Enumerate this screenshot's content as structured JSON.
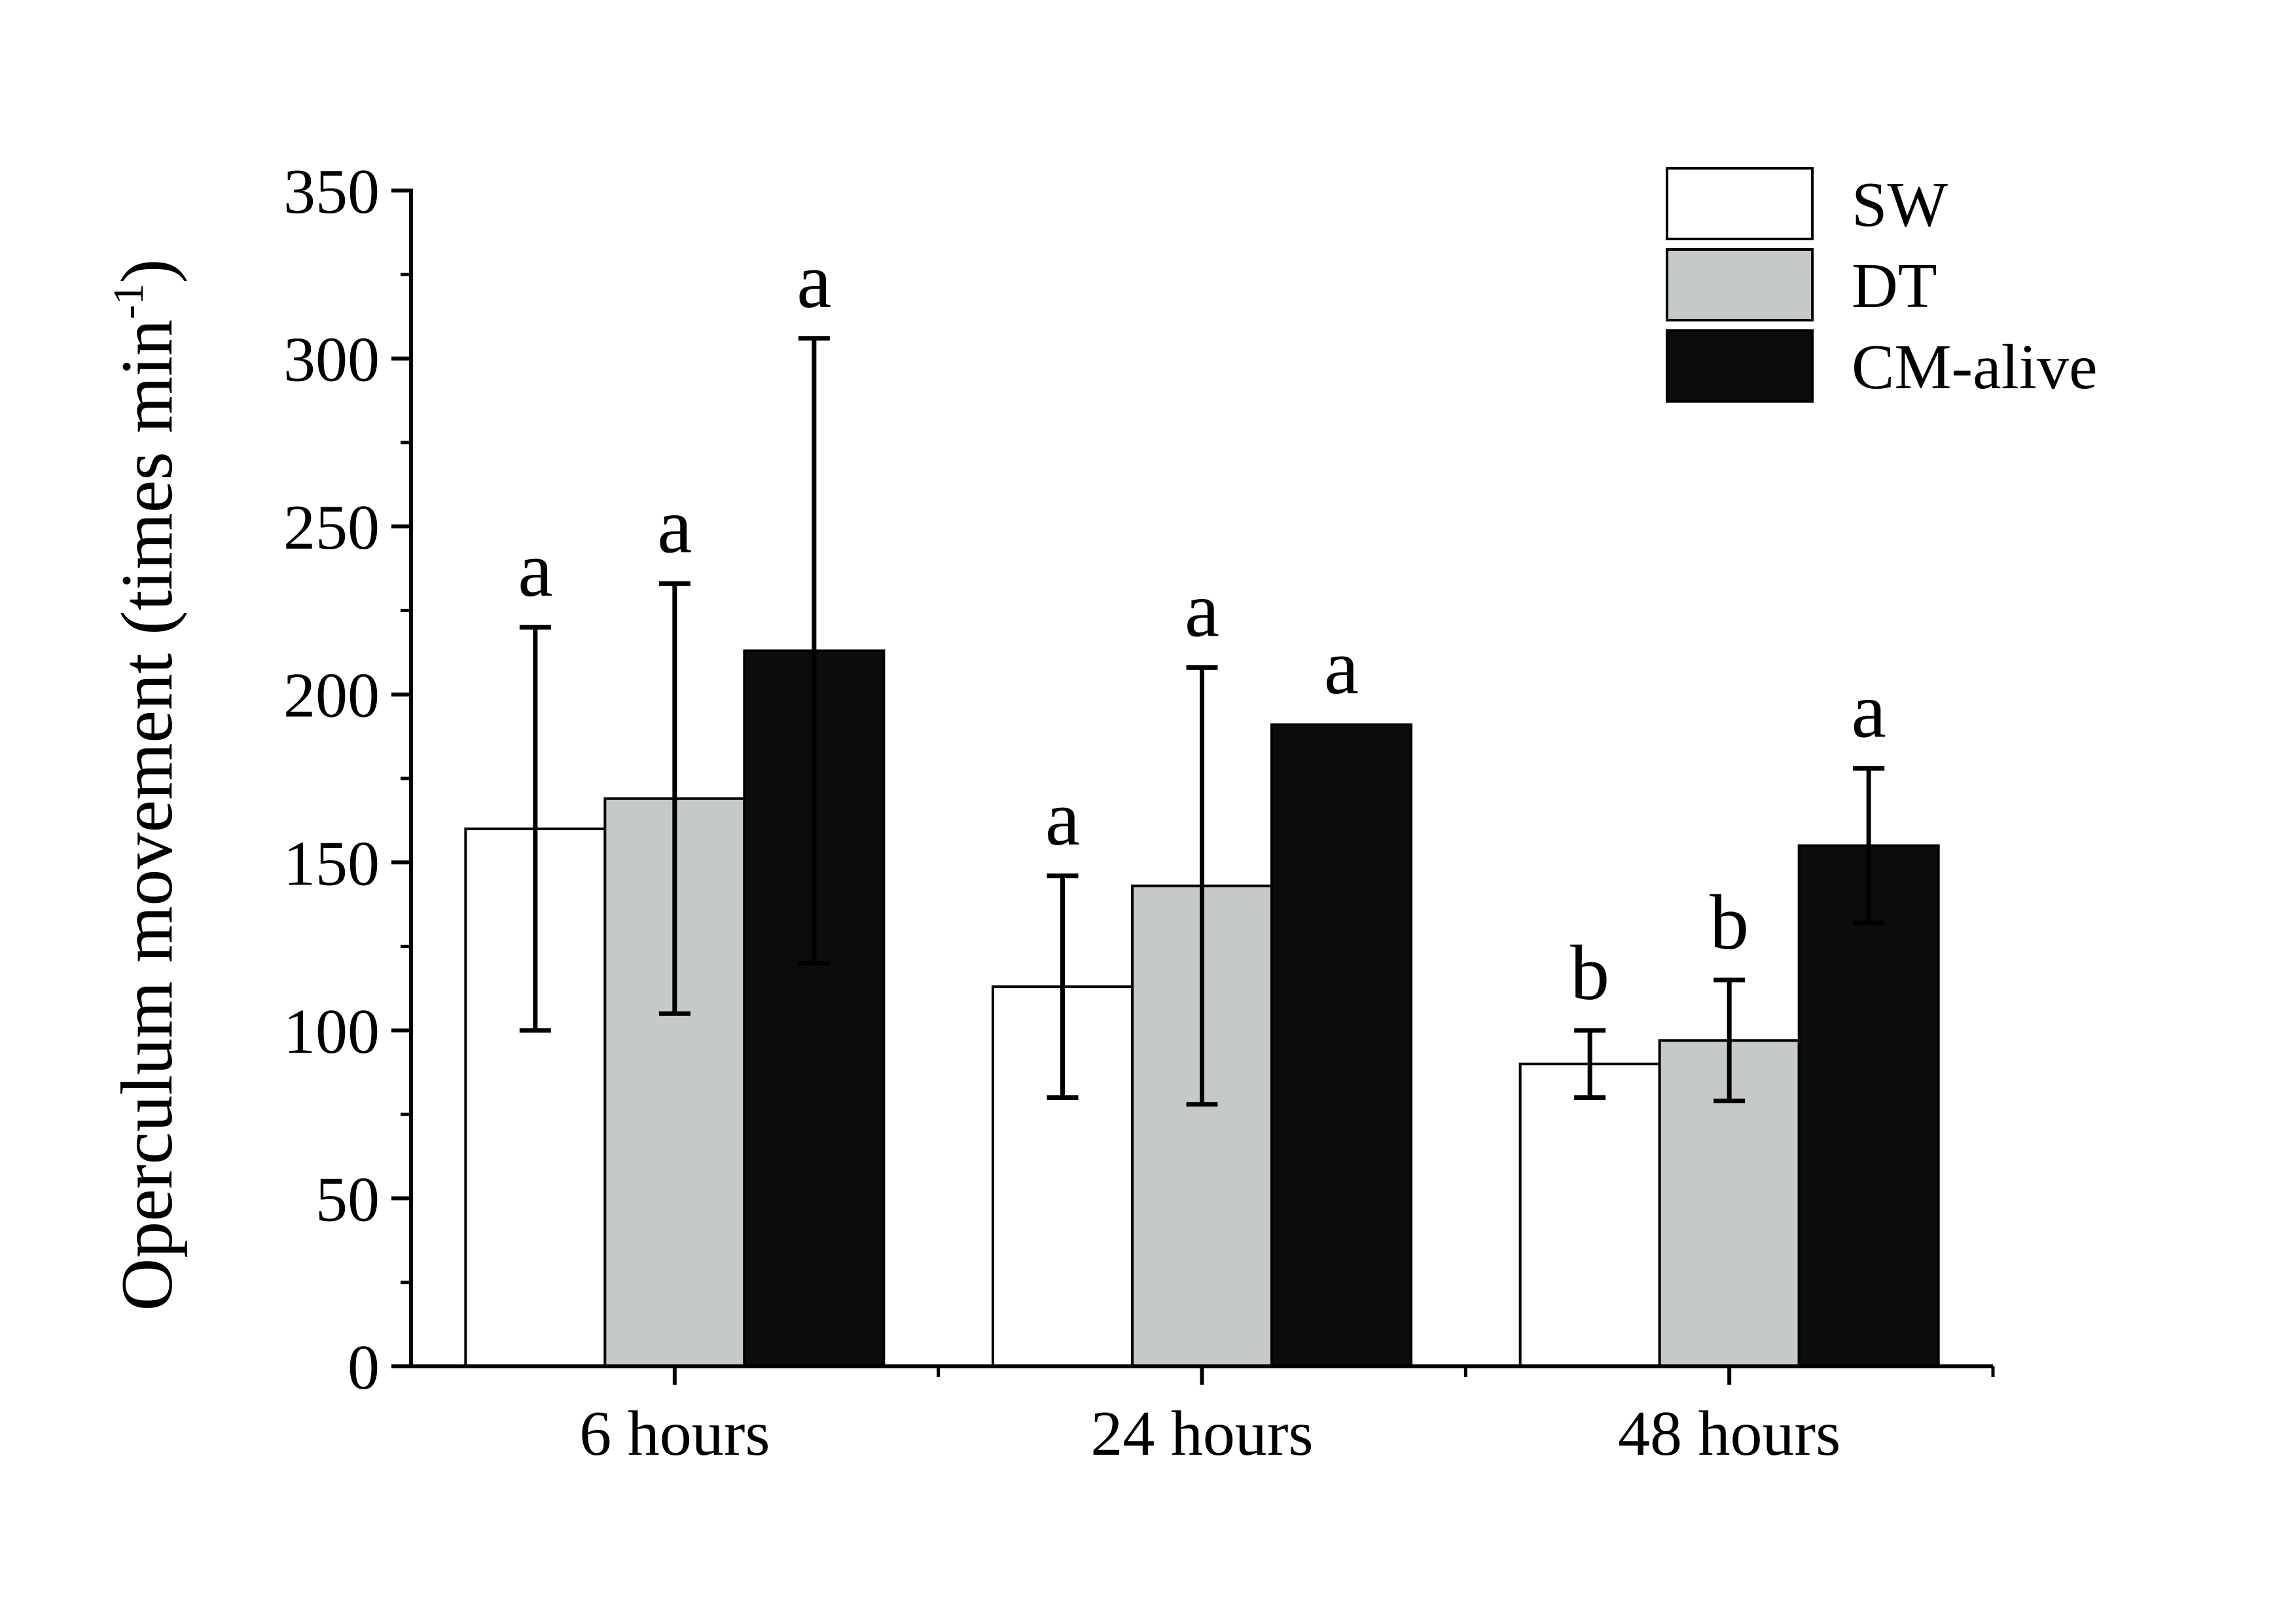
{
  "chart_data": {
    "type": "bar",
    "title": "",
    "xlabel": "",
    "ylabel": {
      "main": "Operculum movement (times min",
      "superscript": "-1",
      "close": ")"
    },
    "ylim": [
      0,
      350
    ],
    "yticks": [
      0,
      50,
      100,
      150,
      200,
      250,
      300,
      350
    ],
    "y_minor_step": 25,
    "grid": false,
    "legend_position": "top-right",
    "categories": [
      "6 hours",
      "24 hours",
      "48 hours"
    ],
    "series": [
      {
        "name": "SW",
        "color": "#ffffff",
        "values": [
          160,
          113,
          90
        ],
        "errors": [
          60,
          33,
          10
        ],
        "letters": [
          "a",
          "a",
          "b"
        ]
      },
      {
        "name": "DT",
        "color": "#c5cac7",
        "values": [
          169,
          143,
          97
        ],
        "errors": [
          64,
          65,
          18
        ],
        "letters": [
          "a",
          "a",
          "b"
        ]
      },
      {
        "name": "CM-alive",
        "color": "#0a0d0b",
        "values": [
          213,
          191,
          155
        ],
        "errors": [
          93,
          0,
          23
        ],
        "letters": [
          "a",
          "a",
          "a"
        ]
      }
    ]
  }
}
